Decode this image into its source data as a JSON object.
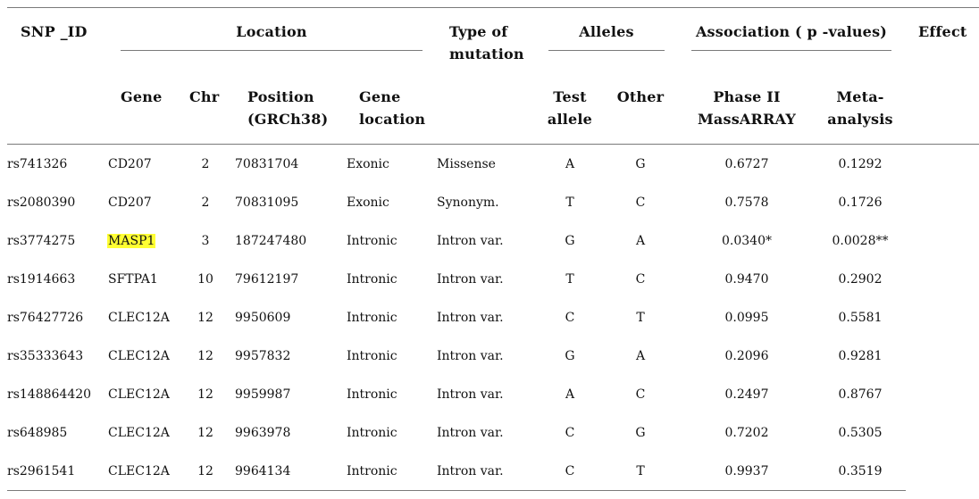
{
  "headers": {
    "snp_id": "SNP _ID",
    "location": "Location",
    "type_of_mutation_1": "Type of",
    "type_of_mutation_2": "mutation",
    "alleles": "Alleles",
    "association": "Association ( p -values)",
    "effect": "Effect",
    "gene": "Gene",
    "chr": "Chr",
    "position_1": "Position",
    "position_2": "(GRCh38)",
    "gene_location_1": "Gene",
    "gene_location_2": "location",
    "test_allele_1": "Test",
    "test_allele_2": "allele",
    "other": "Other",
    "phase2_1": "Phase II",
    "phase2_2": "MassARRAY",
    "meta_1": "Meta-",
    "meta_2": "analysis"
  },
  "rows": [
    {
      "snp": "rs741326",
      "gene": "CD207",
      "chr": "2",
      "position": "70831704",
      "location": "Exonic",
      "type": "Missense",
      "test": "A",
      "other": "G",
      "phase2": "0.6727",
      "meta": "0.1292",
      "highlight": false
    },
    {
      "snp": "rs2080390",
      "gene": "CD207",
      "chr": "2",
      "position": "70831095",
      "location": "Exonic",
      "type": "Synonym.",
      "test": "T",
      "other": "C",
      "phase2": "0.7578",
      "meta": "0.1726",
      "highlight": false
    },
    {
      "snp": "rs3774275",
      "gene": "MASP1",
      "chr": "3",
      "position": "187247480",
      "location": "Intronic",
      "type": "Intron var.",
      "test": "G",
      "other": "A",
      "phase2": "0.0340*",
      "meta": "0.0028**",
      "highlight": true
    },
    {
      "snp": "rs1914663",
      "gene": "SFTPA1",
      "chr": "10",
      "position": "79612197",
      "location": "Intronic",
      "type": "Intron var.",
      "test": "T",
      "other": "C",
      "phase2": "0.9470",
      "meta": "0.2902",
      "highlight": false
    },
    {
      "snp": "rs76427726",
      "gene": "CLEC12A",
      "chr": "12",
      "position": "9950609",
      "location": "Intronic",
      "type": "Intron var.",
      "test": "C",
      "other": "T",
      "phase2": "0.0995",
      "meta": "0.5581",
      "highlight": false
    },
    {
      "snp": "rs35333643",
      "gene": "CLEC12A",
      "chr": "12",
      "position": "9957832",
      "location": "Intronic",
      "type": "Intron var.",
      "test": "G",
      "other": "A",
      "phase2": "0.2096",
      "meta": "0.9281",
      "highlight": false
    },
    {
      "snp": "rs148864420",
      "gene": "CLEC12A",
      "chr": "12",
      "position": "9959987",
      "location": "Intronic",
      "type": "Intron var.",
      "test": "A",
      "other": "C",
      "phase2": "0.2497",
      "meta": "0.8767",
      "highlight": false
    },
    {
      "snp": "rs648985",
      "gene": "CLEC12A",
      "chr": "12",
      "position": "9963978",
      "location": "Intronic",
      "type": "Intron var.",
      "test": "C",
      "other": "G",
      "phase2": "0.7202",
      "meta": "0.5305",
      "highlight": false
    },
    {
      "snp": "rs2961541",
      "gene": "CLEC12A",
      "chr": "12",
      "position": "9964134",
      "location": "Intronic",
      "type": "Intron var.",
      "test": "C",
      "other": "T",
      "phase2": "0.9937",
      "meta": "0.3519",
      "highlight": false
    }
  ],
  "colors": {
    "highlight": "#ffff33",
    "rule": "#7a7a7a"
  }
}
